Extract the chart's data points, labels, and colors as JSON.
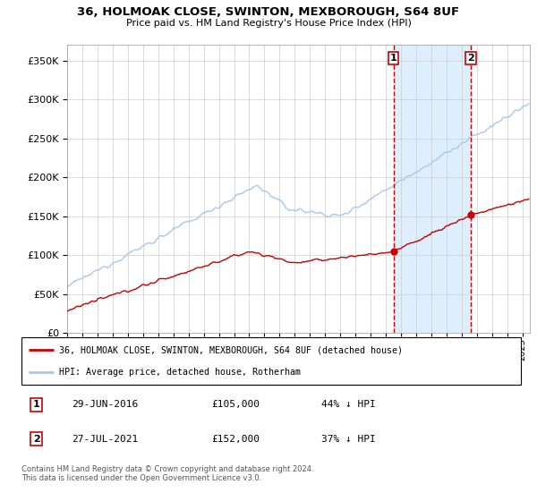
{
  "title": "36, HOLMOAK CLOSE, SWINTON, MEXBOROUGH, S64 8UF",
  "subtitle": "Price paid vs. HM Land Registry's House Price Index (HPI)",
  "legend_line1": "36, HOLMOAK CLOSE, SWINTON, MEXBOROUGH, S64 8UF (detached house)",
  "legend_line2": "HPI: Average price, detached house, Rotherham",
  "annotation1_label": "1",
  "annotation1_date": "29-JUN-2016",
  "annotation1_price": "£105,000",
  "annotation1_pct": "44% ↓ HPI",
  "annotation2_label": "2",
  "annotation2_date": "27-JUL-2021",
  "annotation2_price": "£152,000",
  "annotation2_pct": "37% ↓ HPI",
  "footer": "Contains HM Land Registry data © Crown copyright and database right 2024.\nThis data is licensed under the Open Government Licence v3.0.",
  "hpi_color": "#a8c8e8",
  "price_color": "#cc0000",
  "plot_bg": "#ffffff",
  "grid_color": "#cccccc",
  "vline_color": "#cc0000",
  "highlight_bg": "#ddeeff",
  "ylim": [
    0,
    370000
  ],
  "yticks": [
    0,
    50000,
    100000,
    150000,
    200000,
    250000,
    300000,
    350000
  ],
  "sale1_x": 2016.5,
  "sale1_y": 105000,
  "sale2_x": 2021.58,
  "sale2_y": 152000,
  "xlim_start": 1995,
  "xlim_end": 2025.5
}
